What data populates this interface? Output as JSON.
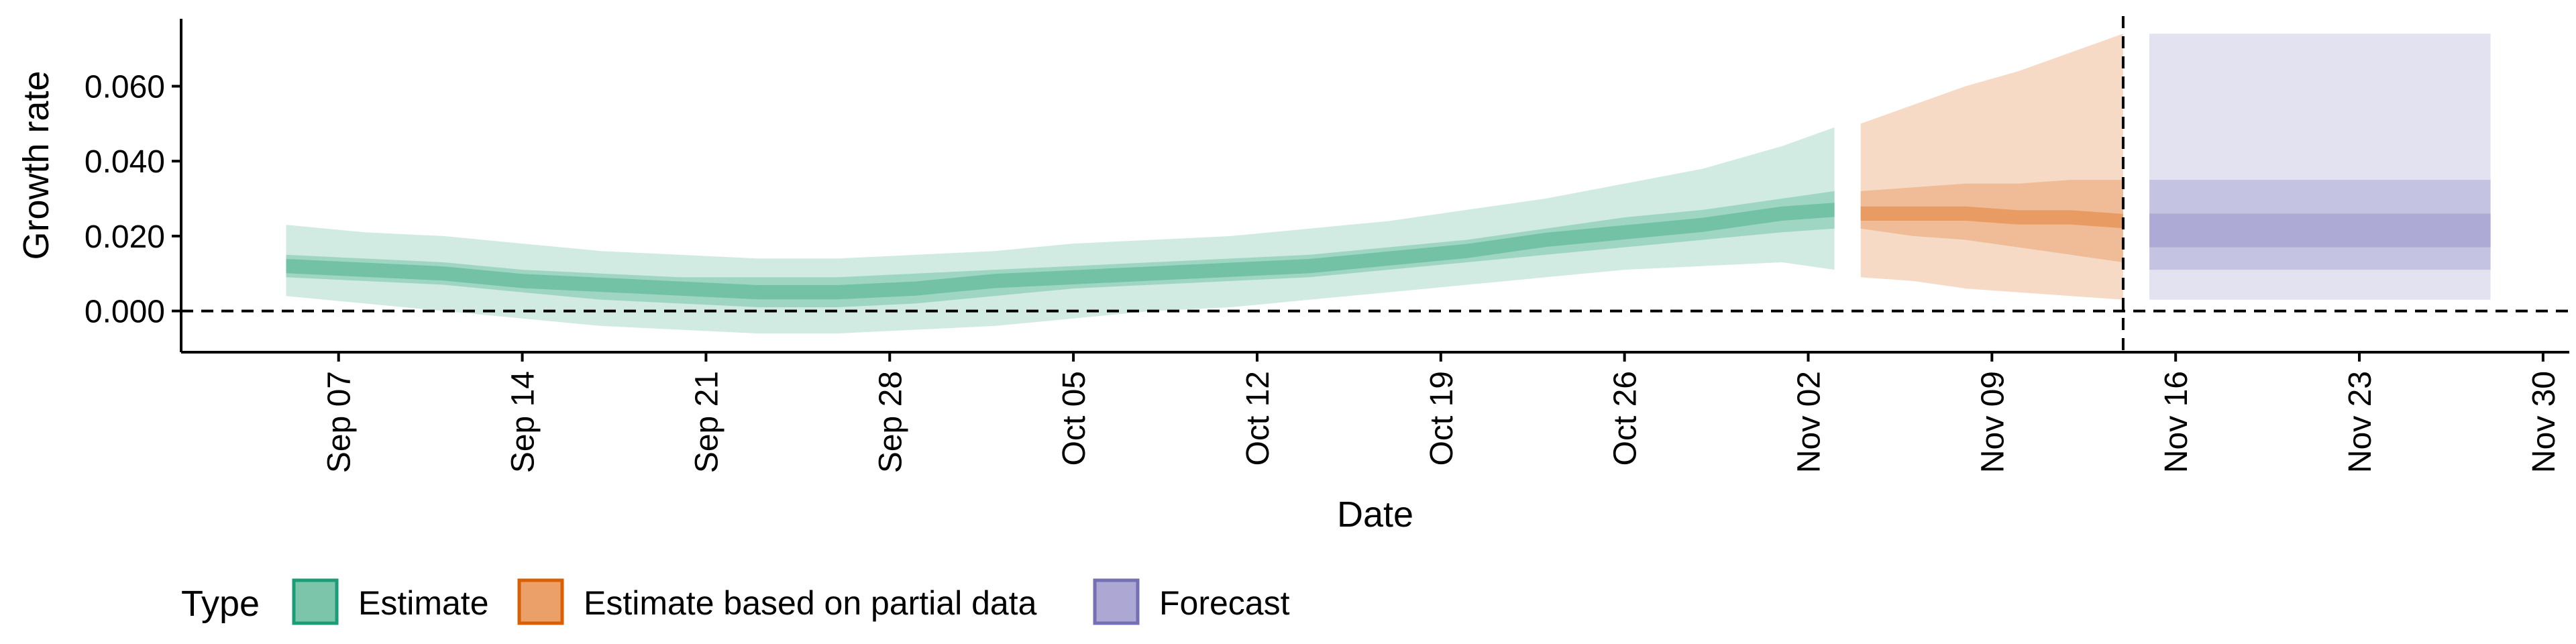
{
  "chart_data": {
    "type": "area",
    "xlabel": "Date",
    "ylabel": "Growth rate",
    "x_ticks": [
      "2023-09-07",
      "2023-09-14",
      "2023-09-21",
      "2023-09-28",
      "2023-10-05",
      "2023-10-12",
      "2023-10-19",
      "2023-10-26",
      "2023-11-02",
      "2023-11-09",
      "2023-11-16",
      "2023-11-23",
      "2023-11-30"
    ],
    "x_tick_labels": [
      "Sep 07",
      "Sep 14",
      "Sep 21",
      "Sep 28",
      "Oct 05",
      "Oct 12",
      "Oct 19",
      "Oct 26",
      "Nov 02",
      "Nov 09",
      "Nov 16",
      "Nov 23",
      "Nov 30"
    ],
    "y_ticks": [
      0.0,
      0.02,
      0.04,
      0.06
    ],
    "y_tick_labels": [
      "0.000",
      "0.020",
      "0.040",
      "0.060"
    ],
    "xlim": [
      "2023-09-01",
      "2023-12-01"
    ],
    "ylim": [
      -0.011,
      0.078
    ],
    "zero_reference_line": 0.0,
    "forecast_start_line": "2023-11-14",
    "grid": false,
    "legend": {
      "title": "Type",
      "position": "bottom-left",
      "entries": [
        {
          "label": "Estimate",
          "fill": "#7cc5aa",
          "border": "#1b9e77"
        },
        {
          "label": "Estimate based on partial data",
          "fill": "#eba06a",
          "border": "#d95f02"
        },
        {
          "label": "Forecast",
          "fill": "#aca8d3",
          "border": "#7570b3"
        }
      ]
    },
    "series": [
      {
        "name": "Estimate",
        "colors": {
          "outer": "#d1ebe3",
          "mid": "#9fd6c3",
          "inner": "#73c2a6"
        },
        "points": [
          {
            "x": "2023-09-05",
            "y": [
              0.012,
              0.009,
              0.015,
              0.004,
              0.023
            ]
          },
          {
            "x": "2023-09-08",
            "y": [
              0.011,
              0.008,
              0.014,
              0.002,
              0.021
            ]
          },
          {
            "x": "2023-09-11",
            "y": [
              0.01,
              0.007,
              0.013,
              0.0,
              0.02
            ]
          },
          {
            "x": "2023-09-14",
            "y": [
              0.008,
              0.005,
              0.011,
              -0.002,
              0.018
            ]
          },
          {
            "x": "2023-09-17",
            "y": [
              0.007,
              0.003,
              0.01,
              -0.004,
              0.016
            ]
          },
          {
            "x": "2023-09-20",
            "y": [
              0.006,
              0.002,
              0.009,
              -0.005,
              0.015
            ]
          },
          {
            "x": "2023-09-23",
            "y": [
              0.005,
              0.001,
              0.009,
              -0.006,
              0.014
            ]
          },
          {
            "x": "2023-09-26",
            "y": [
              0.005,
              0.001,
              0.009,
              -0.006,
              0.014
            ]
          },
          {
            "x": "2023-09-29",
            "y": [
              0.006,
              0.002,
              0.01,
              -0.005,
              0.015
            ]
          },
          {
            "x": "2023-10-02",
            "y": [
              0.008,
              0.004,
              0.011,
              -0.004,
              0.016
            ]
          },
          {
            "x": "2023-10-05",
            "y": [
              0.009,
              0.006,
              0.012,
              -0.002,
              0.018
            ]
          },
          {
            "x": "2023-10-08",
            "y": [
              0.01,
              0.007,
              0.013,
              0.0,
              0.019
            ]
          },
          {
            "x": "2023-10-11",
            "y": [
              0.011,
              0.008,
              0.014,
              0.001,
              0.02
            ]
          },
          {
            "x": "2023-10-14",
            "y": [
              0.012,
              0.009,
              0.015,
              0.003,
              0.022
            ]
          },
          {
            "x": "2023-10-17",
            "y": [
              0.014,
              0.011,
              0.017,
              0.005,
              0.024
            ]
          },
          {
            "x": "2023-10-20",
            "y": [
              0.016,
              0.013,
              0.019,
              0.007,
              0.027
            ]
          },
          {
            "x": "2023-10-23",
            "y": [
              0.019,
              0.015,
              0.022,
              0.009,
              0.03
            ]
          },
          {
            "x": "2023-10-26",
            "y": [
              0.021,
              0.017,
              0.025,
              0.011,
              0.034
            ]
          },
          {
            "x": "2023-10-29",
            "y": [
              0.023,
              0.019,
              0.027,
              0.012,
              0.038
            ]
          },
          {
            "x": "2023-11-01",
            "y": [
              0.026,
              0.021,
              0.03,
              0.013,
              0.044
            ]
          },
          {
            "x": "2023-11-03",
            "y": [
              0.027,
              0.022,
              0.032,
              0.011,
              0.049
            ]
          }
        ]
      },
      {
        "name": "Estimate based on partial data",
        "colors": {
          "outer": "#f6dac6",
          "mid": "#efbc97",
          "inner": "#e89b62"
        },
        "points": [
          {
            "x": "2023-11-04",
            "y": [
              0.026,
              0.022,
              0.032,
              0.009,
              0.05
            ]
          },
          {
            "x": "2023-11-06",
            "y": [
              0.026,
              0.02,
              0.033,
              0.008,
              0.055
            ]
          },
          {
            "x": "2023-11-08",
            "y": [
              0.026,
              0.019,
              0.034,
              0.006,
              0.06
            ]
          },
          {
            "x": "2023-11-10",
            "y": [
              0.025,
              0.017,
              0.034,
              0.005,
              0.064
            ]
          },
          {
            "x": "2023-11-12",
            "y": [
              0.025,
              0.015,
              0.035,
              0.004,
              0.069
            ]
          },
          {
            "x": "2023-11-14",
            "y": [
              0.024,
              0.013,
              0.035,
              0.003,
              0.074
            ]
          }
        ]
      },
      {
        "name": "Forecast",
        "colors": {
          "outer": "#e3e2f0",
          "mid": "#c5c3e2",
          "inner": "#aeaad6"
        },
        "points": [
          {
            "x": "2023-11-15",
            "y": [
              0.022,
              0.017,
              0.026,
              0.011,
              0.035,
              0.003,
              0.074
            ]
          },
          {
            "x": "2023-11-28",
            "y": [
              0.022,
              0.017,
              0.026,
              0.011,
              0.035,
              0.003,
              0.074
            ]
          }
        ]
      }
    ]
  }
}
